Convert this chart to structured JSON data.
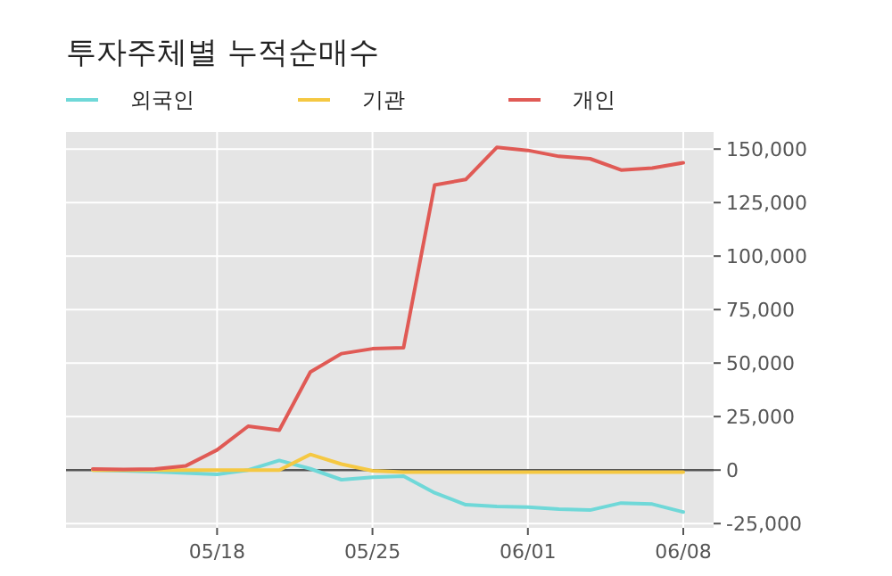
{
  "chart_data": {
    "type": "line",
    "title": "투자주체별 누적순매수",
    "categories": [
      null,
      null,
      null,
      null,
      "05/18",
      null,
      null,
      null,
      null,
      "05/25",
      null,
      null,
      null,
      null,
      "06/01",
      null,
      null,
      null,
      null,
      "06/08"
    ],
    "series": [
      {
        "name": "외국인",
        "color": "#6fd8d8",
        "values": [
          0,
          -300,
          -800,
          -1400,
          -2000,
          0,
          4500,
          600,
          -4500,
          -3400,
          -2800,
          -10600,
          -16200,
          -17000,
          -17300,
          -18200,
          -18700,
          -15400,
          -15900,
          -19600
        ]
      },
      {
        "name": "기관",
        "color": "#f5c842",
        "values": [
          0,
          0,
          0,
          0,
          0,
          0,
          0,
          7300,
          2800,
          -300,
          -1000,
          -1000,
          -1000,
          -1000,
          -1000,
          -1000,
          -1000,
          -1000,
          -1000,
          -1000
        ]
      },
      {
        "name": "개인",
        "color": "#e05a55",
        "values": [
          500,
          300,
          500,
          2000,
          9400,
          20500,
          18600,
          45800,
          54400,
          56700,
          57200,
          133200,
          135800,
          150800,
          149400,
          146600,
          145500,
          140200,
          141100,
          143600
        ]
      }
    ],
    "ylim": [
      -27000,
      158000
    ],
    "yticks": [
      {
        "value": -25000,
        "label": "-25,000"
      },
      0,
      {
        "value": 25000,
        "label": "25,000"
      },
      {
        "value": 50000,
        "label": "50,000"
      },
      {
        "value": 75000,
        "label": "75,000"
      },
      {
        "value": 100000,
        "label": "100,000"
      },
      {
        "value": 125000,
        "label": "125,000"
      },
      {
        "value": 150000,
        "label": "150,000"
      }
    ],
    "grid": true,
    "legend": "top left",
    "ref_lines": [
      {
        "axis": "y",
        "value": 0,
        "color": "#555555"
      }
    ]
  }
}
